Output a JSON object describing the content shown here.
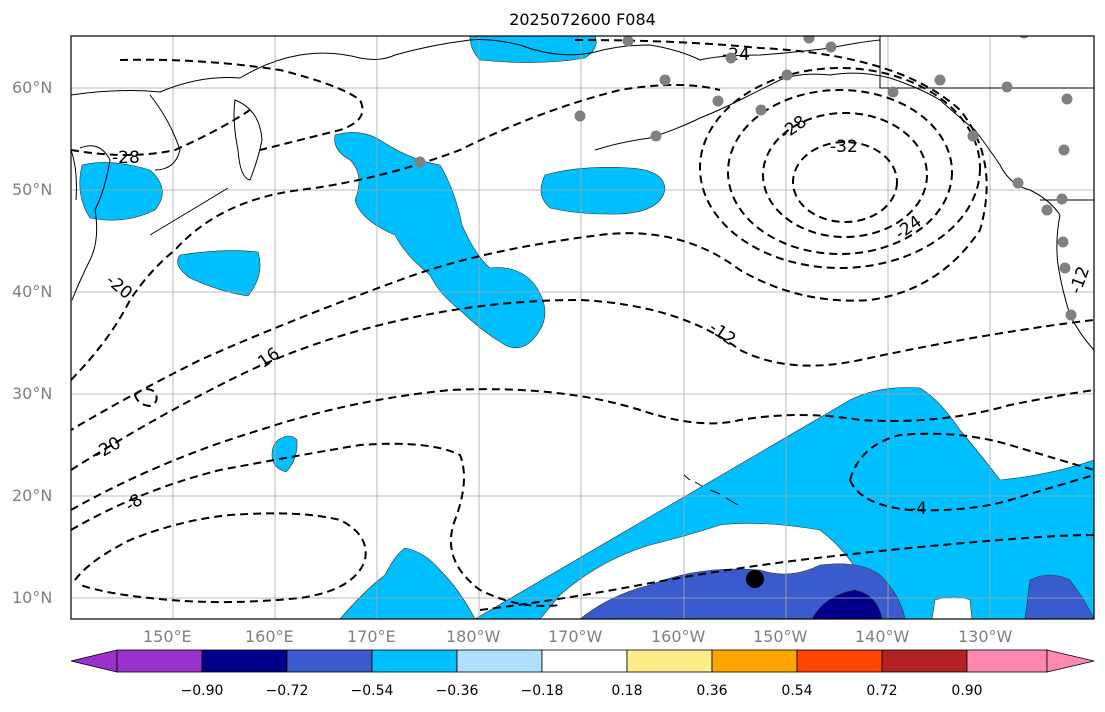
{
  "title": "2025072600 F084",
  "lat_labels": [
    "60°N",
    "50°N",
    "40°N",
    "30°N",
    "20°N",
    "10°N"
  ],
  "lon_labels": [
    "150°E",
    "160°E",
    "170°E",
    "180°W",
    "170°W",
    "160°W",
    "150°W",
    "140°W",
    "130°W"
  ],
  "contour_labels": [
    "-24",
    "-28",
    "-32",
    "-28",
    "-24",
    "-20",
    "-16",
    "-12",
    "-12",
    "-20",
    "-8",
    "-4"
  ],
  "colorbar": {
    "ticks": [
      "−0.90",
      "−0.72",
      "−0.54",
      "−0.36",
      "−0.18",
      "0.18",
      "0.36",
      "0.54",
      "0.72",
      "0.90"
    ],
    "colors": [
      "#9932cc",
      "#00008b",
      "#3a5bcd",
      "#00bfff",
      "#00bfff",
      "#b0e0ff",
      "#ffffff",
      "#ffec8b",
      "#ffa500",
      "#ff4500",
      "#b22222",
      "#ff88b0"
    ]
  },
  "colors": {
    "shade_light": "#00bfff",
    "shade_mid": "#3a5bcd",
    "shade_dark": "#00008b",
    "station": "#808080"
  }
}
